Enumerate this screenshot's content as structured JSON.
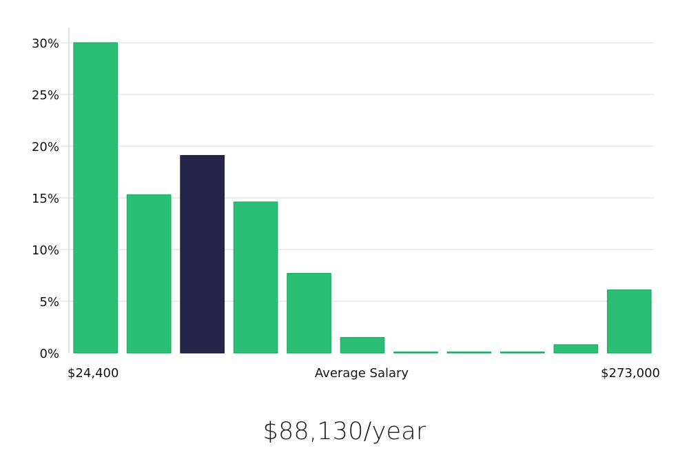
{
  "chart_data": {
    "type": "bar",
    "title": "",
    "xlabel": "Average Salary",
    "ylabel": "",
    "x_min_label": "$24,400",
    "x_max_label": "$273,000",
    "ylim": [
      0,
      30
    ],
    "yticks": [
      0,
      5,
      10,
      15,
      20,
      25,
      30
    ],
    "ytick_labels": [
      "0%",
      "5%",
      "10%",
      "15%",
      "20%",
      "25%",
      "30%"
    ],
    "grid": true,
    "values": [
      30.0,
      15.3,
      19.1,
      14.6,
      7.7,
      1.5,
      0.05,
      0.05,
      0.05,
      0.8,
      6.1
    ],
    "highlight_index": 2,
    "colors": {
      "bar": "#2bbf75",
      "highlight": "#27244a"
    }
  },
  "summary": {
    "average_salary": "$88,130/year"
  }
}
